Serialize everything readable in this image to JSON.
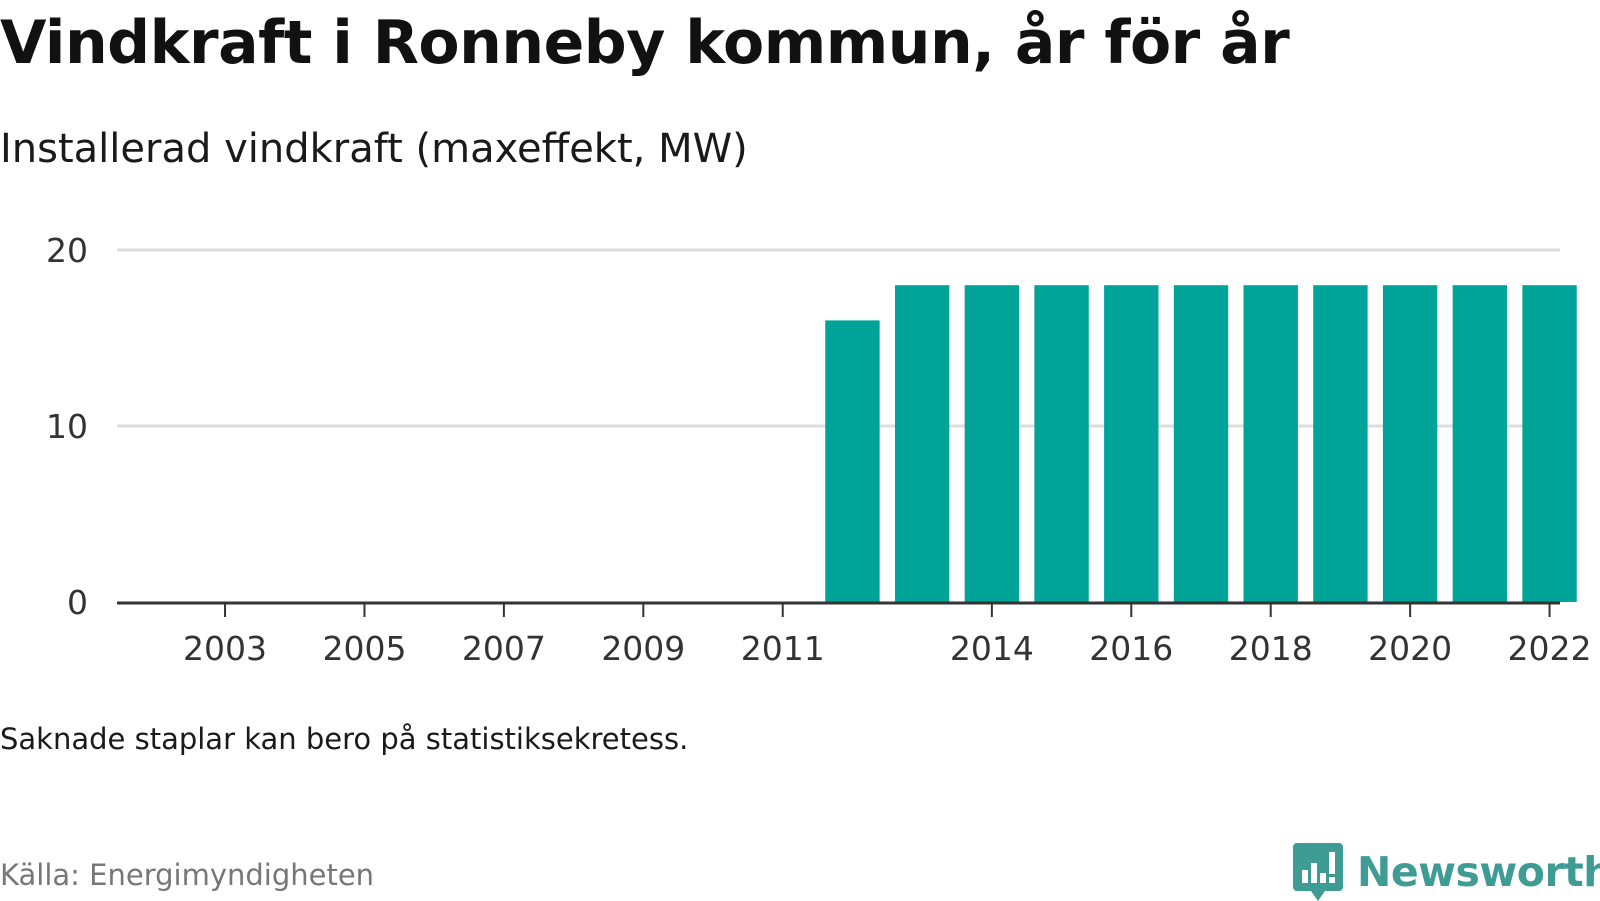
{
  "title": "Vindkraft i Ronneby kommun, år för år",
  "subtitle": "Installerad vindkraft (maxeffekt, MW)",
  "note": "Saknade staplar kan bero på statistiksekretess.",
  "source": "Källa: Energimyndigheten",
  "brand": "Newsworthy",
  "colors": {
    "bar": "#00a398",
    "brand": "#3f9c95",
    "grid": "#dddddd",
    "axis": "#333333"
  },
  "icons": {
    "logo": "newsworthy-logo-icon"
  },
  "chart_data": {
    "type": "bar",
    "title": "Vindkraft i Ronneby kommun, år för år",
    "subtitle": "Installerad vindkraft (maxeffekt, MW)",
    "xlabel": "",
    "ylabel": "",
    "ylim": [
      0,
      20
    ],
    "yticks": [
      0,
      10,
      20
    ],
    "xticks": [
      2003,
      2005,
      2007,
      2009,
      2011,
      2014,
      2016,
      2018,
      2020,
      2022
    ],
    "categories": [
      2002,
      2003,
      2004,
      2005,
      2006,
      2007,
      2008,
      2009,
      2010,
      2011,
      2012,
      2013,
      2014,
      2015,
      2016,
      2017,
      2018,
      2019,
      2020,
      2021,
      2022
    ],
    "values": [
      null,
      null,
      null,
      null,
      null,
      null,
      null,
      null,
      null,
      null,
      16,
      18,
      18,
      18,
      18,
      18,
      18,
      18,
      18,
      18,
      18
    ],
    "grid": true
  }
}
